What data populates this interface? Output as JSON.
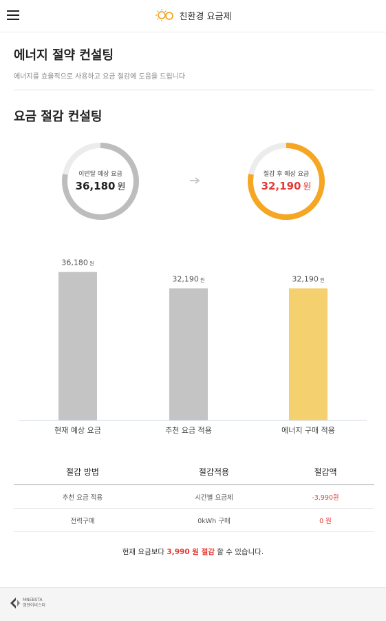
{
  "header": {
    "app_title": "친환경 요금제"
  },
  "page": {
    "title": "에너지 절약 컨설팅",
    "subtitle": "에너지를 효율적으로 사용하고 요금 절감에 도움을 드립니다"
  },
  "consulting": {
    "title": "요금 절감 컨설팅",
    "current_gauge": {
      "label": "이번달 예상 요금",
      "value": "36,180",
      "unit": "원",
      "fill_fraction": 0.78,
      "color": "#bdbdbd"
    },
    "saved_gauge": {
      "label": "절감 후 예상 요금",
      "value": "32,190",
      "unit": "원",
      "fill_fraction": 0.78,
      "color": "#f5a623",
      "value_color": "#e53935"
    }
  },
  "chart_data": {
    "type": "bar",
    "categories": [
      "현재 예상 요금",
      "추천 요금 적용",
      "에너지 구매 적용"
    ],
    "values": [
      36180,
      32190,
      32190
    ],
    "value_labels": [
      "36,180",
      "32,190",
      "32,190"
    ],
    "unit": "원",
    "colors": [
      "#c4c4c4",
      "#c4c4c4",
      "#f5d06f"
    ],
    "ylim": [
      0,
      42000
    ],
    "grid": false
  },
  "table": {
    "headers": [
      "절감 방법",
      "절감적용",
      "절감액"
    ],
    "rows": [
      [
        "추천 요금 적용",
        "시간별 요금제",
        "-3,990원"
      ],
      [
        "전력구매",
        "0kWh 구매",
        "0 원"
      ]
    ]
  },
  "summary": {
    "prefix": "현재 요금보다",
    "amount": "3,990 원 절감",
    "suffix": "할 수 있습니다."
  },
  "footer": {
    "company_name": "MNEBSTA",
    "company_sub": "엠엔이비스타"
  }
}
